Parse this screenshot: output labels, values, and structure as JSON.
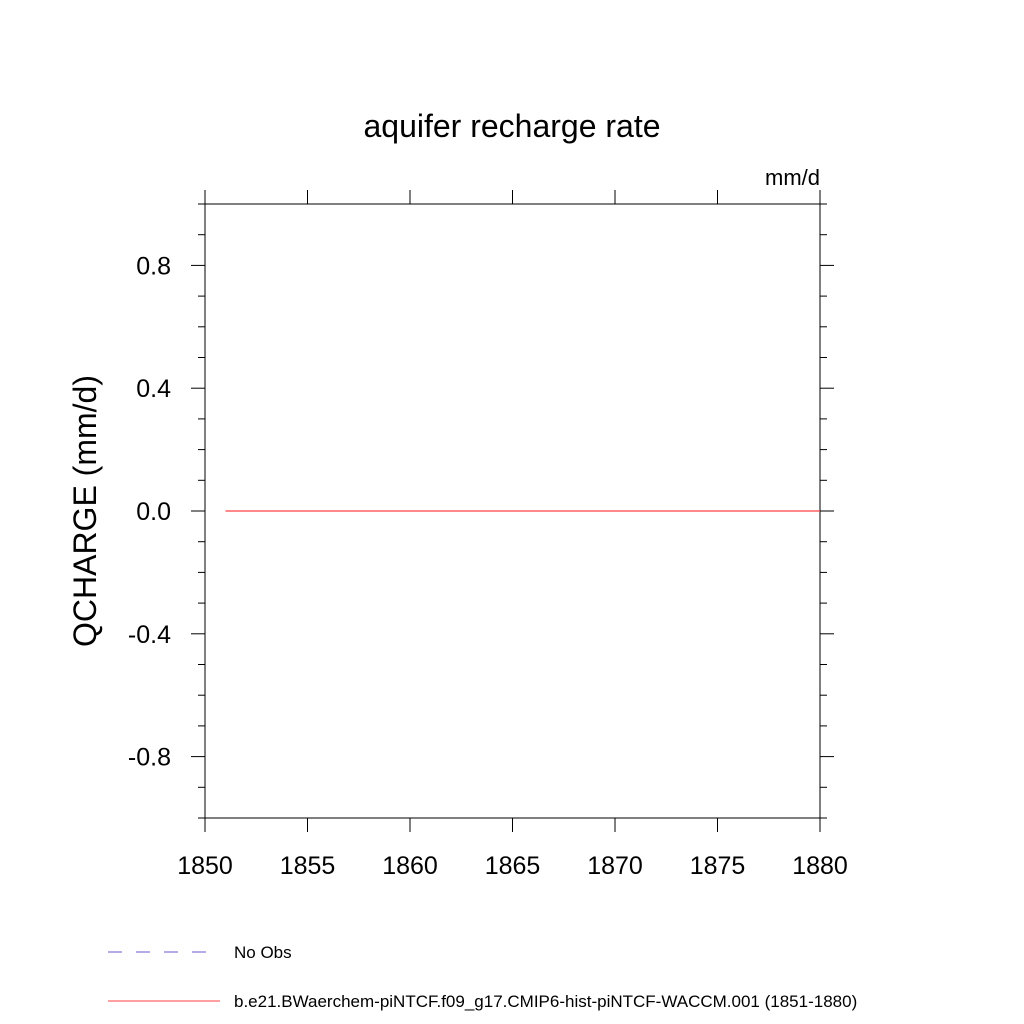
{
  "chart_data": {
    "type": "line",
    "title": "aquifer recharge rate",
    "units": "mm/d",
    "ylabel": "QCHARGE  (mm/d)",
    "xlabel": "",
    "xlim": [
      1850,
      1880
    ],
    "ylim": [
      -1.0,
      1.0
    ],
    "x_ticks": [
      1850,
      1855,
      1860,
      1865,
      1870,
      1875,
      1880
    ],
    "x_tick_labels": [
      "1850",
      "1855",
      "1860",
      "1865",
      "1870",
      "1875",
      "1880"
    ],
    "y_ticks": [
      -0.8,
      -0.4,
      0.0,
      0.4,
      0.8
    ],
    "y_tick_labels": [
      "-0.8",
      "-0.4",
      "0.0",
      "0.4",
      "0.8"
    ],
    "grid": false,
    "legend_position": "bottom",
    "series": [
      {
        "name": "b.e21.BWaerchem-piNTCF.f09_g17.CMIP6-hist-piNTCF-WACCM.001 (1851-1880)",
        "color": "#ff4040",
        "dash": "solid",
        "x": [
          1851,
          1880
        ],
        "y": [
          0.0,
          0.0
        ]
      }
    ],
    "legend": [
      {
        "label": "No Obs",
        "color": "#6a5acd",
        "dash": "dashed"
      },
      {
        "label": "b.e21.BWaerchem-piNTCF.f09_g17.CMIP6-hist-piNTCF-WACCM.001 (1851-1880)",
        "color": "#ff4040",
        "dash": "solid"
      }
    ]
  }
}
